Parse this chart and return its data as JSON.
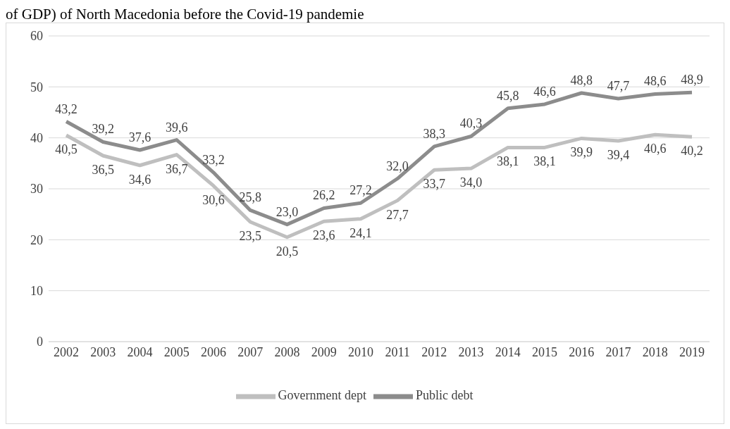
{
  "chart_data": {
    "type": "line",
    "title": "of GDP) of North Macedonia before the Covid-19 pandemie",
    "categories": [
      "2002",
      "2003",
      "2004",
      "2005",
      "2006",
      "2007",
      "2008",
      "2009",
      "2010",
      "2011",
      "2012",
      "2013",
      "2014",
      "2015",
      "2016",
      "2017",
      "2018",
      "2019"
    ],
    "series": [
      {
        "name": "Public debt",
        "color": "#8c8c8c",
        "values": [
          43.2,
          39.2,
          37.6,
          39.6,
          33.2,
          25.8,
          23.0,
          26.2,
          27.2,
          32.0,
          38.3,
          40.3,
          45.8,
          46.6,
          48.8,
          47.7,
          48.6,
          48.9
        ],
        "value_labels": [
          "43,2",
          "39,2",
          "37,6",
          "39,6",
          "33,2",
          "25,8",
          "23,0",
          "26,2",
          "27,2",
          "32,0",
          "38,3",
          "40,3",
          "45,8",
          "46,6",
          "48,8",
          "47,7",
          "48,6",
          "48,9"
        ]
      },
      {
        "name": "Government dept",
        "color": "#bfbfbf",
        "values": [
          40.5,
          36.5,
          34.6,
          36.7,
          30.6,
          23.5,
          20.5,
          23.6,
          24.1,
          27.7,
          33.7,
          34.0,
          38.1,
          38.1,
          39.9,
          39.4,
          40.6,
          40.2
        ],
        "value_labels": [
          "40,5",
          "36,5",
          "34,6",
          "36,7",
          "30,6",
          "23,5",
          "20,5",
          "23,6",
          "24,1",
          "27,7",
          "33,7",
          "34,0",
          "38,1",
          "38,1",
          "39,9",
          "39,4",
          "40,6",
          "40,2"
        ]
      }
    ],
    "ylim": [
      0,
      60
    ],
    "yticks": [
      0,
      10,
      20,
      30,
      40,
      50,
      60
    ],
    "grid": "y",
    "legend": "bottom",
    "marker": "none",
    "line_style": "solid"
  }
}
